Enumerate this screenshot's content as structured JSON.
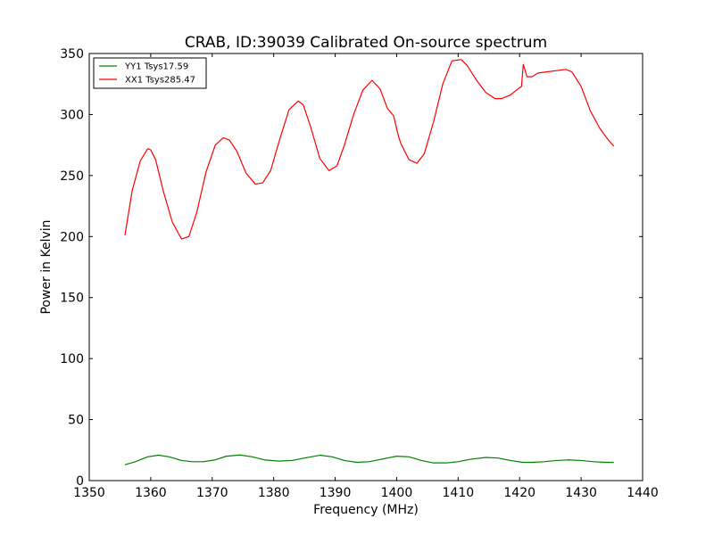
{
  "chart_data": {
    "type": "line",
    "title": "CRAB, ID:39039 Calibrated On-source spectrum",
    "xlabel": "Frequency (MHz)",
    "ylabel": "Power in Kelvin",
    "xlim": [
      1350,
      1440
    ],
    "ylim": [
      0,
      350
    ],
    "xticks": [
      1350,
      1360,
      1370,
      1380,
      1390,
      1400,
      1410,
      1420,
      1430,
      1440
    ],
    "yticks": [
      0,
      50,
      100,
      150,
      200,
      250,
      300,
      350
    ],
    "grid": false,
    "legend_position": "top-left",
    "series": [
      {
        "name": "YY1 Tsys17.59",
        "color": "#008000",
        "x": [
          1355.8,
          1357.5,
          1359.5,
          1361.3,
          1363.0,
          1365.0,
          1366.8,
          1368.5,
          1370.5,
          1372.3,
          1374.5,
          1376.5,
          1378.5,
          1380.8,
          1383.0,
          1385.0,
          1387.5,
          1389.5,
          1391.5,
          1393.5,
          1395.5,
          1397.5,
          1400.0,
          1402.0,
          1404.0,
          1406.0,
          1408.0,
          1410.0,
          1412.0,
          1414.5,
          1416.5,
          1418.5,
          1420.5,
          1422.0,
          1424.0,
          1426.0,
          1428.0,
          1430.0,
          1432.0,
          1434.0,
          1435.3
        ],
        "y": [
          13.0,
          15.5,
          19.5,
          20.8,
          19.5,
          16.5,
          15.5,
          15.5,
          17.0,
          20.0,
          21.0,
          19.5,
          17.0,
          16.0,
          16.5,
          18.5,
          20.8,
          19.5,
          16.5,
          15.0,
          15.5,
          17.5,
          20.0,
          19.5,
          16.5,
          14.5,
          14.5,
          15.5,
          17.5,
          19.0,
          18.5,
          16.5,
          15.0,
          15.0,
          15.5,
          16.5,
          17.0,
          16.5,
          15.5,
          15.0,
          15.0
        ]
      },
      {
        "name": "XX1 Tsys285.47",
        "color": "#ff0000",
        "x": [
          1355.8,
          1357.0,
          1358.3,
          1359.5,
          1360.0,
          1360.8,
          1362.0,
          1363.5,
          1365.0,
          1366.2,
          1367.5,
          1369.0,
          1370.5,
          1371.8,
          1372.8,
          1374.0,
          1375.5,
          1377.0,
          1378.2,
          1379.5,
          1381.0,
          1382.5,
          1384.0,
          1384.8,
          1386.0,
          1387.5,
          1389.0,
          1390.3,
          1391.5,
          1393.0,
          1394.5,
          1396.0,
          1397.3,
          1398.5,
          1399.5,
          1400.3,
          1400.7,
          1402.0,
          1403.3,
          1404.5,
          1406.0,
          1407.5,
          1409.0,
          1410.5,
          1411.5,
          1413.0,
          1414.5,
          1416.0,
          1417.0,
          1418.5,
          1420.0,
          1420.3,
          1420.6,
          1421.2,
          1422.0,
          1423.0,
          1424.5,
          1426.0,
          1427.5,
          1428.5,
          1430.0,
          1431.5,
          1433.0,
          1434.3,
          1435.3
        ],
        "y": [
          201,
          238,
          262,
          272,
          271,
          263,
          238,
          212,
          198,
          200,
          220,
          253,
          275,
          281,
          279,
          270,
          252,
          243,
          244,
          254,
          280,
          304,
          311,
          308,
          290,
          264,
          254,
          258,
          275,
          300,
          320,
          328,
          321,
          305,
          299,
          282,
          276,
          263,
          260,
          268,
          294,
          325,
          344,
          345,
          340,
          328,
          318,
          313,
          313,
          316,
          322,
          323,
          341,
          331,
          331,
          334,
          335,
          336,
          337,
          335,
          323,
          303,
          289,
          280,
          274
        ]
      }
    ]
  }
}
